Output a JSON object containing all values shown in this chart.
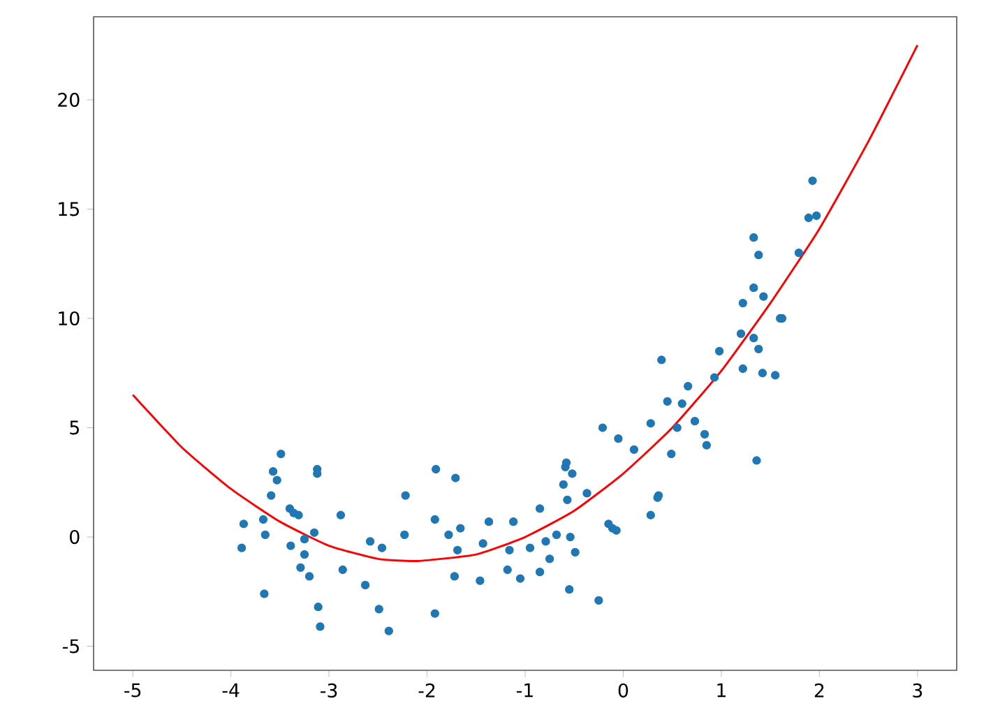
{
  "chart_data": {
    "type": "scatter",
    "xlim": [
      -5.4,
      3.4
    ],
    "ylim": [
      -6.1,
      23.8
    ],
    "xticks": [
      -5,
      -4,
      -3,
      -2,
      -1,
      0,
      1,
      2,
      3
    ],
    "yticks": [
      -5,
      0,
      5,
      10,
      15,
      20
    ],
    "grid": false,
    "series": [
      {
        "type": "scatter",
        "color": "#1f77b4",
        "marker": "circle",
        "x": [
          -3.89,
          -3.87,
          -3.67,
          -3.66,
          -3.65,
          -3.59,
          -3.57,
          -3.53,
          -3.49,
          -3.4,
          -3.36,
          -3.31,
          -3.39,
          -3.25,
          -3.25,
          -3.29,
          -3.2,
          -3.15,
          -3.12,
          -3.12,
          -3.11,
          -3.09,
          -2.88,
          -2.86,
          -2.63,
          -2.58,
          -2.46,
          -2.49,
          -2.39,
          -2.23,
          -2.22,
          -1.92,
          -1.91,
          -1.92,
          -1.78,
          -1.71,
          -1.66,
          -1.69,
          -1.72,
          -1.37,
          -1.43,
          -1.46,
          -1.12,
          -1.16,
          -1.18,
          -1.05,
          -0.85,
          -0.75,
          -0.95,
          -0.79,
          -0.68,
          -0.54,
          -0.49,
          -0.85,
          -0.57,
          -0.61,
          -0.59,
          -0.58,
          -0.52,
          -0.37,
          -0.55,
          -0.25,
          -0.21,
          -0.05,
          0.11,
          -0.15,
          -0.11,
          -0.07,
          0.28,
          0.35,
          0.36,
          0.28,
          0.39,
          0.45,
          0.49,
          0.55,
          0.6,
          0.66,
          0.73,
          0.83,
          0.85,
          0.93,
          0.98,
          1.2,
          1.22,
          1.33,
          1.38,
          1.36,
          1.42,
          1.55,
          1.62,
          1.22,
          1.33,
          1.43,
          1.6,
          1.33,
          1.38,
          1.79,
          1.89,
          1.97,
          1.93
        ],
        "values": [
          -0.5,
          0.6,
          0.8,
          -2.6,
          0.1,
          1.9,
          3.0,
          2.6,
          3.8,
          1.3,
          1.1,
          1.0,
          -0.4,
          -0.1,
          -0.8,
          -1.4,
          -1.8,
          0.2,
          3.1,
          2.9,
          -3.2,
          -4.1,
          1.0,
          -1.5,
          -2.2,
          -0.2,
          -0.5,
          -3.3,
          -4.3,
          0.1,
          1.9,
          0.8,
          3.1,
          -3.5,
          0.1,
          2.7,
          0.4,
          -0.6,
          -1.8,
          0.7,
          -0.3,
          -2.0,
          0.7,
          -0.6,
          -1.5,
          -1.9,
          -1.6,
          -1.0,
          -0.5,
          -0.2,
          0.1,
          0.0,
          -0.7,
          1.3,
          1.7,
          2.4,
          3.2,
          3.4,
          2.9,
          2.0,
          -2.4,
          -2.9,
          5.0,
          4.5,
          4.0,
          0.6,
          0.4,
          0.3,
          1.0,
          1.8,
          1.9,
          5.2,
          8.1,
          6.2,
          3.8,
          5.0,
          6.1,
          6.9,
          5.3,
          4.7,
          4.2,
          7.3,
          8.5,
          9.3,
          7.7,
          9.1,
          8.6,
          3.5,
          7.5,
          7.4,
          10.0,
          10.7,
          11.4,
          11.0,
          10.0,
          13.7,
          12.9,
          13.0,
          14.6,
          14.7,
          16.3
        ]
      },
      {
        "type": "line",
        "color": "#ff0000",
        "marker": "none",
        "line_style": "solid",
        "x": [
          -5,
          -4.5,
          -4,
          -3.5,
          -3,
          -2.5,
          -2.1,
          -1.5,
          -1,
          -0.5,
          0,
          0.5,
          1,
          1.5,
          2,
          2.5,
          3
        ],
        "values": [
          6.5,
          4.1,
          2.2,
          0.7,
          -0.4,
          -1.0,
          -1.1,
          -0.8,
          0.0,
          1.2,
          2.9,
          5.0,
          7.6,
          10.7,
          14.1,
          18.1,
          22.5
        ]
      }
    ]
  }
}
